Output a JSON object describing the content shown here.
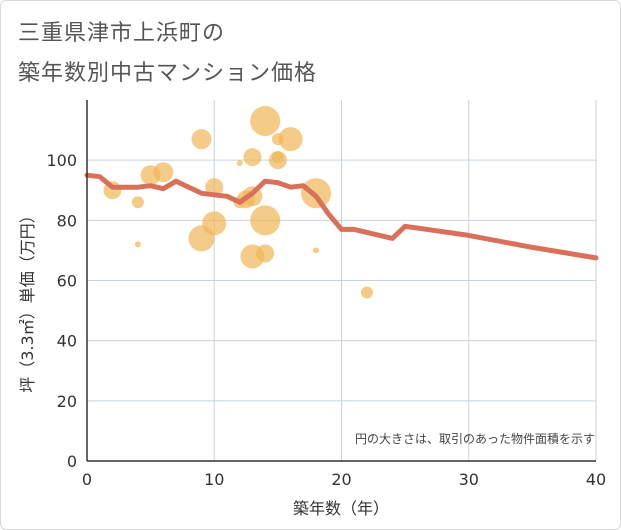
{
  "title_line1": "三重県津市上浜町の",
  "title_line2": "築年数別中古マンション価格",
  "chart_data": {
    "type": "scatter",
    "xlabel": "築年数（年）",
    "ylabel": "坪（3.3㎡）単価（万円）",
    "xlim": [
      0,
      40
    ],
    "ylim": [
      0,
      120
    ],
    "x_ticks": [
      0,
      10,
      20,
      30,
      40
    ],
    "y_ticks": [
      0,
      20,
      40,
      60,
      80,
      100
    ],
    "grid": true,
    "note": "円の大きさは、取引のあった物件面積を示す",
    "colors": {
      "bubble": "#f0b654",
      "line": "#d9705a",
      "grid": "#c8d3df",
      "axis": "#333333"
    },
    "bubbles": [
      {
        "x": 2,
        "y": 90,
        "size": 9
      },
      {
        "x": 4,
        "y": 86,
        "size": 6
      },
      {
        "x": 4,
        "y": 72,
        "size": 3
      },
      {
        "x": 5,
        "y": 95,
        "size": 10
      },
      {
        "x": 6,
        "y": 96,
        "size": 10
      },
      {
        "x": 9,
        "y": 107,
        "size": 10
      },
      {
        "x": 9,
        "y": 74,
        "size": 13
      },
      {
        "x": 10,
        "y": 91,
        "size": 9
      },
      {
        "x": 10,
        "y": 79,
        "size": 12
      },
      {
        "x": 12,
        "y": 99,
        "size": 3
      },
      {
        "x": 12,
        "y": 86,
        "size": 6
      },
      {
        "x": 12.5,
        "y": 87,
        "size": 9
      },
      {
        "x": 13,
        "y": 101,
        "size": 9
      },
      {
        "x": 13,
        "y": 88,
        "size": 10
      },
      {
        "x": 13,
        "y": 68,
        "size": 12
      },
      {
        "x": 14,
        "y": 113,
        "size": 15
      },
      {
        "x": 14,
        "y": 80,
        "size": 15
      },
      {
        "x": 14,
        "y": 69,
        "size": 9
      },
      {
        "x": 15,
        "y": 107,
        "size": 6
      },
      {
        "x": 15,
        "y": 101,
        "size": 6
      },
      {
        "x": 15,
        "y": 100,
        "size": 9
      },
      {
        "x": 16,
        "y": 107,
        "size": 12
      },
      {
        "x": 18,
        "y": 89,
        "size": 15
      },
      {
        "x": 18,
        "y": 70,
        "size": 3
      },
      {
        "x": 22,
        "y": 56,
        "size": 6
      }
    ],
    "series": [
      {
        "x": [
          0,
          1,
          2,
          3,
          4,
          5,
          6,
          7,
          8,
          9,
          10,
          11,
          12,
          13,
          14,
          15,
          16,
          17,
          18,
          19,
          20,
          21,
          22,
          23,
          24,
          25,
          30,
          35,
          40
        ],
        "y": [
          95,
          94.5,
          91,
          91,
          91,
          91.5,
          90.5,
          93,
          91,
          89,
          88.5,
          88,
          86,
          89,
          93,
          92.5,
          91,
          91.5,
          88,
          82,
          77,
          77,
          76,
          75,
          74,
          78,
          75,
          71,
          67.5
        ]
      }
    ]
  }
}
